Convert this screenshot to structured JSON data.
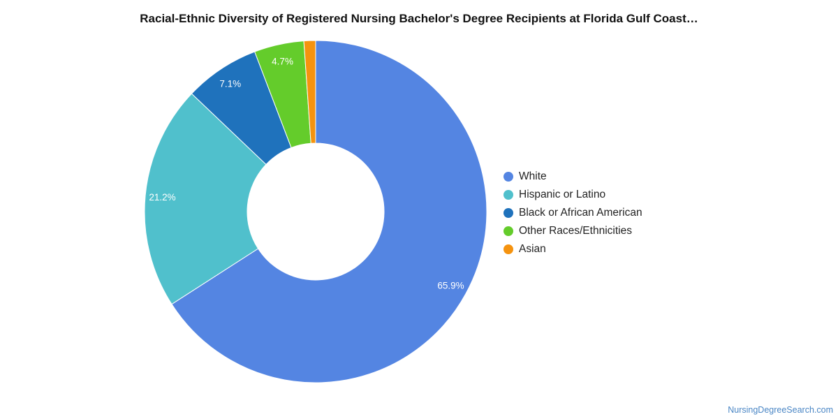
{
  "chart_data": {
    "type": "pie",
    "title": "Racial-Ethnic Diversity of Registered Nursing Bachelor's Degree Recipients at Florida Gulf Coast…",
    "donut": true,
    "legend_position": "right",
    "series": [
      {
        "name": "White",
        "value": 65.9,
        "label": "65.9%",
        "color": "#5485e2"
      },
      {
        "name": "Hispanic or Latino",
        "value": 21.2,
        "label": "21.2%",
        "color": "#50c0cc"
      },
      {
        "name": "Black or African American",
        "value": 7.1,
        "label": "7.1%",
        "color": "#1f72bc"
      },
      {
        "name": "Other Races/Ethnicities",
        "value": 4.7,
        "label": "4.7%",
        "color": "#64cc2b"
      },
      {
        "name": "Asian",
        "value": 1.1,
        "label": "",
        "color": "#f5930f"
      }
    ]
  },
  "footer": {
    "source": "NursingDegreeSearch.com"
  }
}
